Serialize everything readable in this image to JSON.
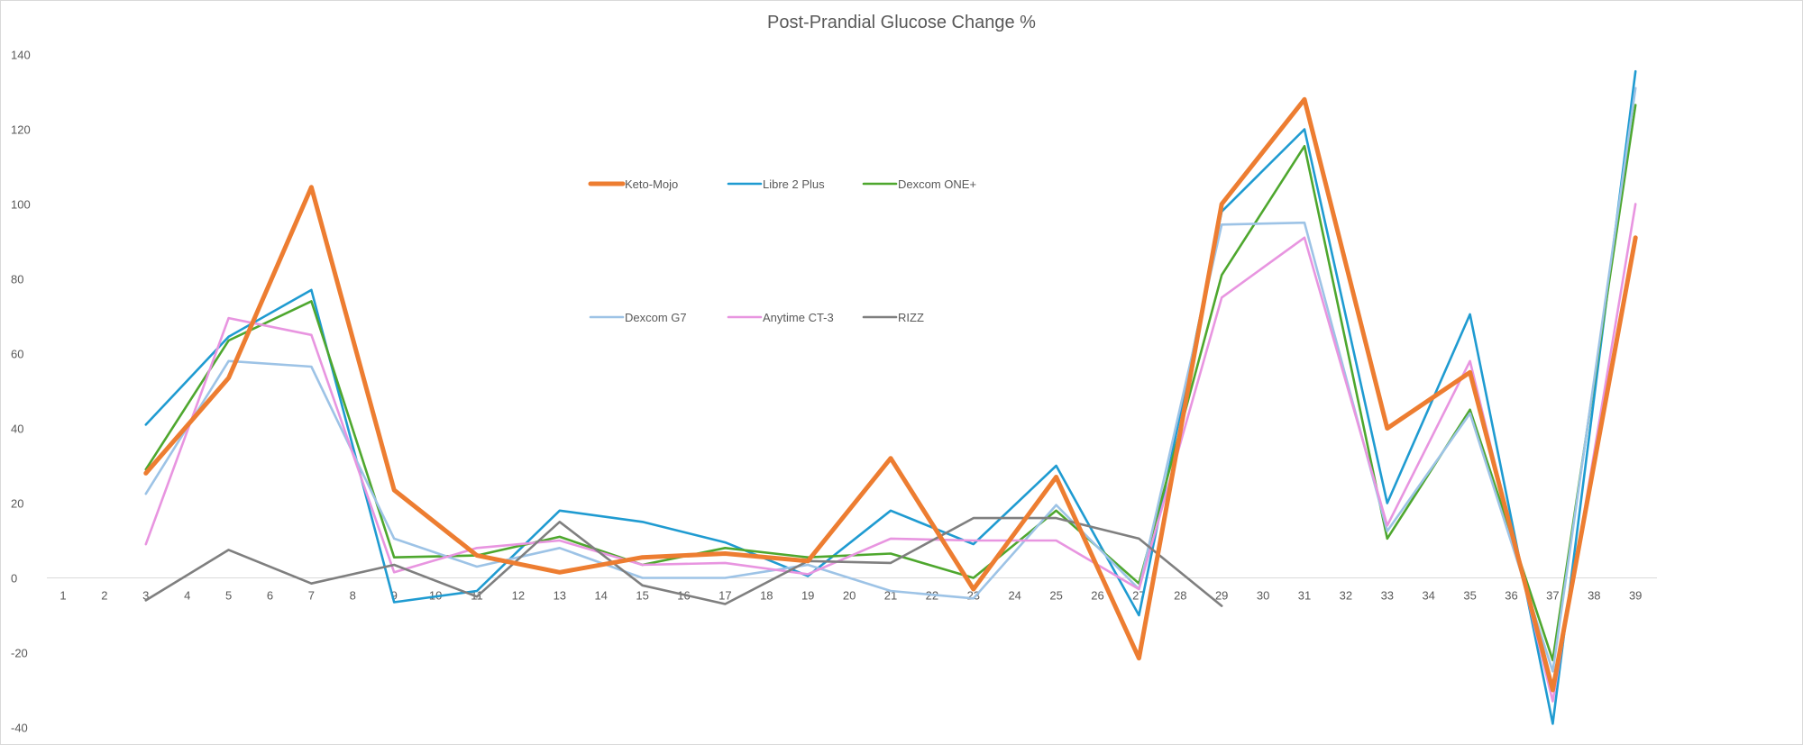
{
  "chart_data": {
    "type": "line",
    "title": "Post-Prandial Glucose Change %",
    "xlabel": "",
    "ylabel": "",
    "x": [
      1,
      2,
      3,
      4,
      5,
      6,
      7,
      8,
      9,
      10,
      11,
      12,
      13,
      14,
      15,
      16,
      17,
      18,
      19,
      20,
      21,
      22,
      23,
      24,
      25,
      26,
      27,
      28,
      29,
      30,
      31,
      32,
      33,
      34,
      35,
      36,
      37,
      38,
      39
    ],
    "ylim": [
      -40,
      140
    ],
    "yticks": [
      -40,
      -20,
      0,
      20,
      40,
      60,
      80,
      100,
      120,
      140
    ],
    "grid": false,
    "legend_position": "top-center",
    "series": [
      {
        "name": "Keto-Mojo",
        "color": "#ED7D31",
        "points": [
          [
            3,
            28
          ],
          [
            5,
            53.5
          ],
          [
            7,
            104.5
          ],
          [
            9,
            23.5
          ],
          [
            11,
            6
          ],
          [
            13,
            1.5
          ],
          [
            15,
            5.5
          ],
          [
            17,
            6.5
          ],
          [
            19,
            4.5
          ],
          [
            21,
            32
          ],
          [
            23,
            -3
          ],
          [
            25,
            27
          ],
          [
            27,
            -21.5
          ],
          [
            29,
            100
          ],
          [
            31,
            128
          ],
          [
            33,
            40
          ],
          [
            35,
            55
          ],
          [
            37,
            -30
          ],
          [
            39,
            91
          ]
        ]
      },
      {
        "name": "Libre 2 Plus",
        "color": "#1F9BD1",
        "points": [
          [
            3,
            41
          ],
          [
            5,
            64.5
          ],
          [
            7,
            77
          ],
          [
            9,
            -6.5
          ],
          [
            11,
            -3.5
          ],
          [
            13,
            18
          ],
          [
            15,
            15
          ],
          [
            17,
            9.5
          ],
          [
            19,
            0.5
          ],
          [
            21,
            18
          ],
          [
            23,
            9
          ],
          [
            25,
            30
          ],
          [
            27,
            -10
          ],
          [
            29,
            98
          ],
          [
            31,
            120
          ],
          [
            33,
            20
          ],
          [
            35,
            70.5
          ],
          [
            37,
            -39
          ],
          [
            39,
            135.5
          ]
        ]
      },
      {
        "name": "Dexcom ONE+",
        "color": "#4EA72E",
        "points": [
          [
            3,
            29
          ],
          [
            5,
            63.5
          ],
          [
            7,
            74
          ],
          [
            9,
            5.5
          ],
          [
            11,
            6
          ],
          [
            13,
            11
          ],
          [
            15,
            3.5
          ],
          [
            17,
            8
          ],
          [
            19,
            5.5
          ],
          [
            21,
            6.5
          ],
          [
            23,
            0
          ],
          [
            25,
            18
          ],
          [
            27,
            -1.5
          ],
          [
            29,
            81
          ],
          [
            31,
            115.5
          ],
          [
            33,
            10.5
          ],
          [
            35,
            45
          ],
          [
            37,
            -22
          ],
          [
            39,
            126.5
          ]
        ]
      },
      {
        "name": "Dexcom G7",
        "color": "#9DC3E6",
        "points": [
          [
            3,
            22.5
          ],
          [
            5,
            58
          ],
          [
            7,
            56.5
          ],
          [
            9,
            10.5
          ],
          [
            11,
            3
          ],
          [
            13,
            8
          ],
          [
            15,
            0
          ],
          [
            17,
            0
          ],
          [
            19,
            3.5
          ],
          [
            21,
            -3.5
          ],
          [
            23,
            -5.5
          ],
          [
            25,
            19.5
          ],
          [
            27,
            -3
          ],
          [
            29,
            94.5
          ],
          [
            31,
            95
          ],
          [
            33,
            12.5
          ],
          [
            35,
            44
          ],
          [
            37,
            -25
          ],
          [
            39,
            131
          ]
        ]
      },
      {
        "name": "Anytime CT-3",
        "color": "#E895E0",
        "points": [
          [
            3,
            9
          ],
          [
            5,
            69.5
          ],
          [
            7,
            65
          ],
          [
            9,
            1.5
          ],
          [
            11,
            8
          ],
          [
            13,
            10
          ],
          [
            15,
            3.5
          ],
          [
            17,
            4
          ],
          [
            19,
            1
          ],
          [
            21,
            10.5
          ],
          [
            23,
            10
          ],
          [
            25,
            10
          ],
          [
            27,
            -3
          ],
          [
            29,
            75
          ],
          [
            31,
            91
          ],
          [
            33,
            14
          ],
          [
            35,
            58
          ],
          [
            37,
            -33
          ],
          [
            39,
            100
          ]
        ]
      },
      {
        "name": "RIZZ",
        "color": "#7F7F7F",
        "points": [
          [
            3,
            -6
          ],
          [
            5,
            7.5
          ],
          [
            7,
            -1.5
          ],
          [
            9,
            3.5
          ],
          [
            11,
            -5
          ],
          [
            13,
            15
          ],
          [
            15,
            -2
          ],
          [
            17,
            -7
          ],
          [
            19,
            4.5
          ],
          [
            21,
            4
          ],
          [
            23,
            16
          ],
          [
            25,
            16
          ],
          [
            27,
            10.5
          ],
          [
            29,
            -7.5
          ]
        ]
      }
    ]
  }
}
